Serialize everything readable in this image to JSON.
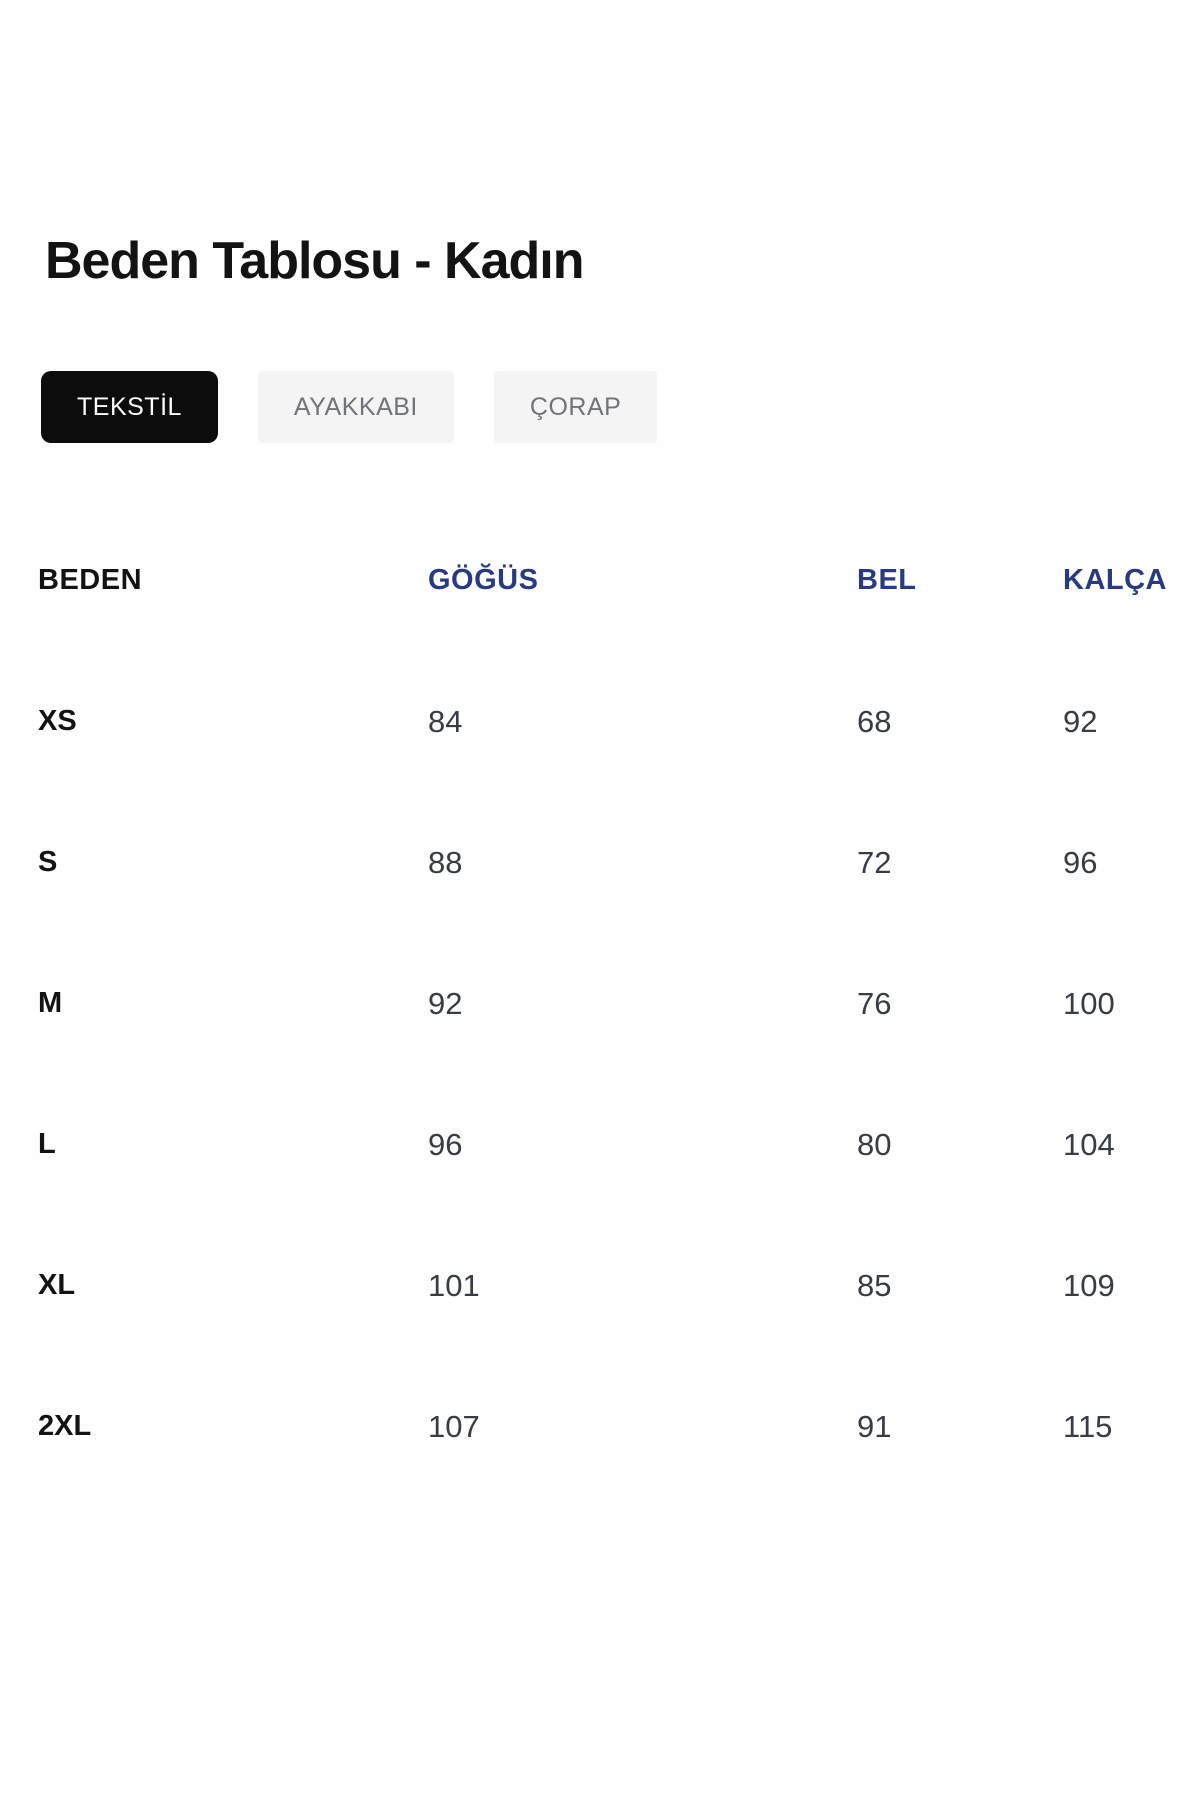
{
  "page": {
    "title": "Beden Tablosu - Kadın"
  },
  "tabs": [
    {
      "label": "TEKSTİL",
      "active": true
    },
    {
      "label": "AYAKKABI",
      "active": false
    },
    {
      "label": "ÇORAP",
      "active": false
    }
  ],
  "table": {
    "columns": [
      "BEDEN",
      "GÖĞÜS",
      "BEL",
      "KALÇA"
    ],
    "rows": [
      {
        "size": "XS",
        "gogus": "84",
        "bel": "68",
        "kalca": "92"
      },
      {
        "size": "S",
        "gogus": "88",
        "bel": "72",
        "kalca": "96"
      },
      {
        "size": "M",
        "gogus": "92",
        "bel": "76",
        "kalca": "100"
      },
      {
        "size": "L",
        "gogus": "96",
        "bel": "80",
        "kalca": "104"
      },
      {
        "size": "XL",
        "gogus": "101",
        "bel": "85",
        "kalca": "109"
      },
      {
        "size": "2XL",
        "gogus": "107",
        "bel": "91",
        "kalca": "115"
      }
    ]
  },
  "colors": {
    "header_measure_navy": "#283a82",
    "active_tab_bg": "#0c0c0c",
    "active_tab_text": "#ffffff",
    "inactive_tab_bg": "#f4f4f4",
    "inactive_tab_text": "#70747a",
    "title_text": "#131313",
    "value_text": "#383d44",
    "page_bg": "#fefefe"
  }
}
